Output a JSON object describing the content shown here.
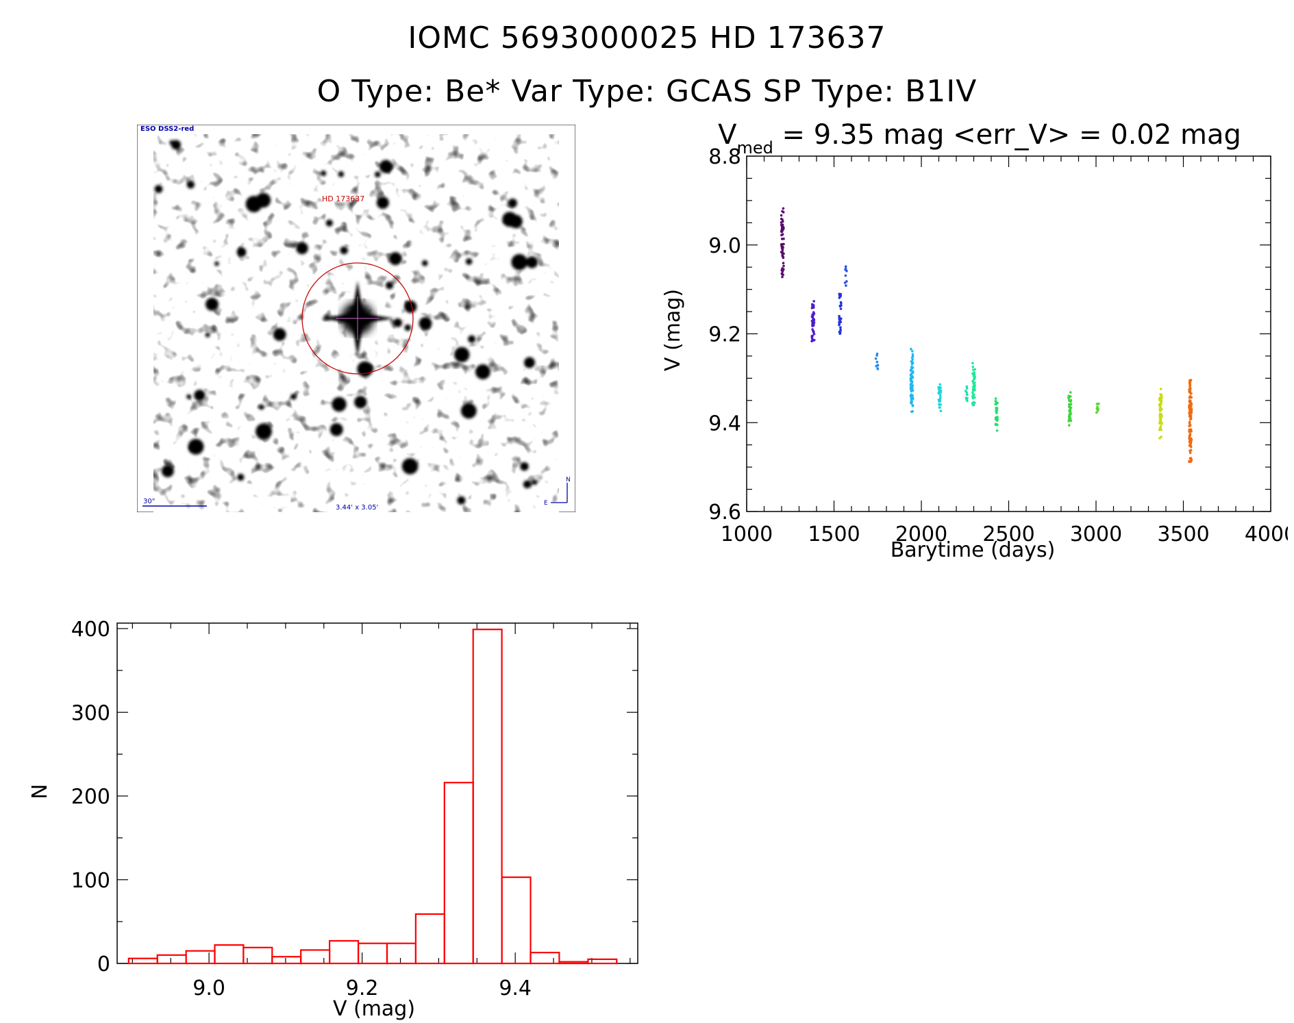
{
  "header": {
    "line1": "IOMC 5693000025    HD 173637",
    "line2": "O Type: Be*  Var Type: GCAS  SP Type: B1IV"
  },
  "finder": {
    "survey_label": "ESO DSS2-red",
    "object_label": "HD 173637",
    "scale_label": "30\"",
    "size_label": "3.44' x 3.05'",
    "compass_n": "N",
    "compass_e": "E",
    "colors": {
      "circle": "#cc0000",
      "crosshair": "#aa55aa",
      "text_blue": "#0000aa"
    }
  },
  "lightcurve": {
    "title_prefix": "V",
    "title_sub": "med",
    "title_rest": " = 9.35 mag <err_V> = 0.02 mag",
    "xlabel": "Barytime (days)",
    "ylabel": "V (mag)"
  },
  "chart_data": [
    {
      "type": "scatter",
      "xlabel": "Barytime (days)",
      "ylabel": "V (mag)",
      "xlim": [
        1000,
        4000
      ],
      "ylim": [
        9.6,
        8.8
      ],
      "y_inverted": true,
      "xticks": [
        1000,
        1500,
        2000,
        2500,
        3000,
        3500,
        4000
      ],
      "yticks": [
        8.8,
        9.0,
        9.2,
        9.4,
        9.6
      ],
      "ytick_labels": [
        "8.8",
        "9.0",
        "9.2",
        "9.4",
        "9.6"
      ],
      "colormap": "rainbow by time",
      "clusters": [
        {
          "x": 1205,
          "ymin": 8.9,
          "ymax": 9.08,
          "n": 60,
          "color": "#5a0a6e"
        },
        {
          "x": 1380,
          "ymin": 9.12,
          "ymax": 9.23,
          "n": 40,
          "color": "#4b1ccc"
        },
        {
          "x": 1535,
          "ymin": 9.1,
          "ymax": 9.22,
          "n": 30,
          "color": "#2433e0"
        },
        {
          "x": 1570,
          "ymin": 9.0,
          "ymax": 9.11,
          "n": 8,
          "color": "#2a50e8"
        },
        {
          "x": 1745,
          "ymin": 9.23,
          "ymax": 9.29,
          "n": 10,
          "color": "#2a8ae8"
        },
        {
          "x": 1945,
          "ymin": 9.23,
          "ymax": 9.38,
          "n": 70,
          "color": "#1eb8f0"
        },
        {
          "x": 2105,
          "ymin": 9.3,
          "ymax": 9.38,
          "n": 25,
          "color": "#1ed6d6"
        },
        {
          "x": 2260,
          "ymin": 9.31,
          "ymax": 9.36,
          "n": 10,
          "color": "#1ee0b0"
        },
        {
          "x": 2300,
          "ymin": 9.26,
          "ymax": 9.38,
          "n": 40,
          "color": "#1ee89a"
        },
        {
          "x": 2430,
          "ymin": 9.33,
          "ymax": 9.43,
          "n": 30,
          "color": "#22e070"
        },
        {
          "x": 2850,
          "ymin": 9.32,
          "ymax": 9.42,
          "n": 35,
          "color": "#3ed63a"
        },
        {
          "x": 3010,
          "ymin": 9.35,
          "ymax": 9.38,
          "n": 8,
          "color": "#5ad630"
        },
        {
          "x": 3370,
          "ymin": 9.32,
          "ymax": 9.44,
          "n": 50,
          "color": "#c8dc10"
        },
        {
          "x": 3540,
          "ymin": 9.29,
          "ymax": 9.51,
          "n": 110,
          "color": "#f06a10"
        }
      ]
    },
    {
      "type": "bar",
      "xlabel": "V (mag)",
      "ylabel": "N",
      "xlim": [
        8.88,
        9.56
      ],
      "ylim": [
        0,
        400
      ],
      "xticks": [
        9.0,
        9.2,
        9.4
      ],
      "xtick_labels": [
        "9.0",
        "9.2",
        "9.4"
      ],
      "yticks": [
        0,
        100,
        200,
        300,
        400
      ],
      "ytick_labels": [
        "0",
        "100",
        "200",
        "300",
        "400"
      ],
      "bin_width": 0.0375,
      "bin_edges_start": 8.895,
      "values": [
        6,
        10,
        15,
        22,
        19,
        8,
        16,
        27,
        24,
        24,
        59,
        216,
        399,
        103,
        13,
        2,
        5
      ],
      "color": "#ff0000"
    }
  ]
}
